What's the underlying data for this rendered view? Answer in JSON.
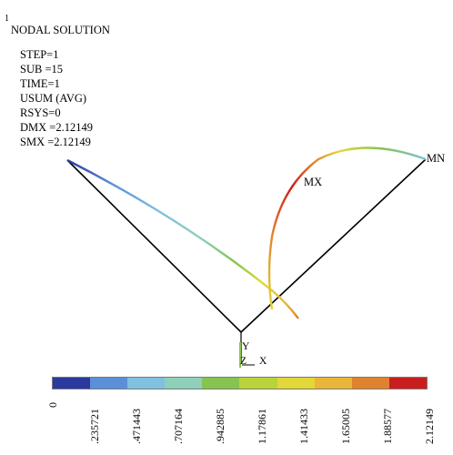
{
  "window_number": "1",
  "header": {
    "title": "NODAL SOLUTION",
    "lines": [
      "STEP=1",
      "SUB =15",
      "TIME=1",
      "USUM (AVG)",
      "RSYS=0",
      "DMX =2.12149",
      "SMX =2.12149"
    ]
  },
  "labels": {
    "mx": "MX",
    "mn": "MN"
  },
  "triad": {
    "y": "Y",
    "z": "Z",
    "x": "X"
  },
  "legend": {
    "ticks": [
      "0",
      ".235721",
      ".471443",
      ".707164",
      ".942885",
      "1.17861",
      "1.41433",
      "1.65005",
      "1.88577",
      "2.12149"
    ],
    "colors": [
      "#2b3a9e",
      "#5b8fd6",
      "#7fc1df",
      "#8fd0b8",
      "#86c44e",
      "#b8d43a",
      "#e2d838",
      "#e9b63a",
      "#e0822e",
      "#c91e1e"
    ]
  }
}
